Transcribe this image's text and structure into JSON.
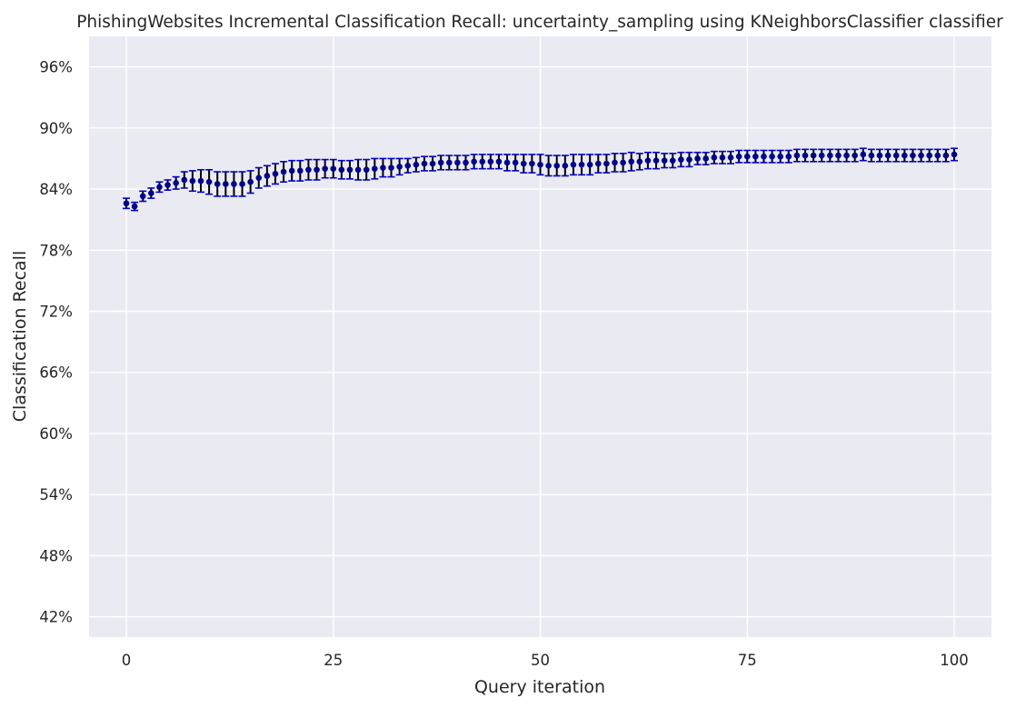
{
  "chart_data": {
    "type": "scatter",
    "title": "PhishingWebsites Incremental Classification Recall: uncertainty_sampling using KNeighborsClassifier classifier",
    "xlabel": "Query iteration",
    "ylabel": "Classification Recall",
    "xlim": [
      -4.5,
      104.5
    ],
    "ylim": [
      0.4,
      0.99
    ],
    "x_ticks": [
      0,
      25,
      50,
      75,
      100
    ],
    "x_tick_labels": [
      "0",
      "25",
      "50",
      "75",
      "100"
    ],
    "y_ticks": [
      0.42,
      0.48,
      0.54,
      0.6,
      0.66,
      0.72,
      0.78,
      0.84,
      0.9,
      0.96
    ],
    "y_tick_labels": [
      "42%",
      "48%",
      "54%",
      "60%",
      "66%",
      "72%",
      "78%",
      "84%",
      "90%",
      "96%"
    ],
    "grid": true,
    "marker_color": "#00008b",
    "errorbar_color": "#000000",
    "cap_color": "#0000cd",
    "background_color": "#eaeaf2",
    "grid_color": "#ffffff",
    "series": [
      {
        "x": [
          0,
          1,
          2,
          3,
          4,
          5,
          6,
          7,
          8,
          9,
          10,
          11,
          12,
          13,
          14,
          15,
          16,
          17,
          18,
          19,
          20,
          21,
          22,
          23,
          24,
          25,
          26,
          27,
          28,
          29,
          30,
          31,
          32,
          33,
          34,
          35,
          36,
          37,
          38,
          39,
          40,
          41,
          42,
          43,
          44,
          45,
          46,
          47,
          48,
          49,
          50,
          51,
          52,
          53,
          54,
          55,
          56,
          57,
          58,
          59,
          60,
          61,
          62,
          63,
          64,
          65,
          66,
          67,
          68,
          69,
          70,
          71,
          72,
          73,
          74,
          75,
          76,
          77,
          78,
          79,
          80,
          81,
          82,
          83,
          84,
          85,
          86,
          87,
          88,
          89,
          90,
          91,
          92,
          93,
          94,
          95,
          96,
          97,
          98,
          99,
          100
        ],
        "y": [
          0.826,
          0.823,
          0.833,
          0.836,
          0.842,
          0.844,
          0.846,
          0.849,
          0.848,
          0.848,
          0.847,
          0.845,
          0.845,
          0.845,
          0.845,
          0.847,
          0.851,
          0.853,
          0.855,
          0.857,
          0.858,
          0.858,
          0.859,
          0.859,
          0.86,
          0.86,
          0.859,
          0.859,
          0.859,
          0.859,
          0.86,
          0.861,
          0.861,
          0.862,
          0.863,
          0.864,
          0.865,
          0.865,
          0.866,
          0.866,
          0.866,
          0.866,
          0.867,
          0.867,
          0.867,
          0.867,
          0.866,
          0.866,
          0.865,
          0.865,
          0.864,
          0.863,
          0.863,
          0.863,
          0.864,
          0.864,
          0.864,
          0.865,
          0.865,
          0.866,
          0.866,
          0.867,
          0.867,
          0.868,
          0.868,
          0.868,
          0.868,
          0.869,
          0.869,
          0.87,
          0.87,
          0.871,
          0.871,
          0.871,
          0.872,
          0.872,
          0.872,
          0.872,
          0.872,
          0.872,
          0.872,
          0.873,
          0.873,
          0.873,
          0.873,
          0.873,
          0.873,
          0.873,
          0.873,
          0.874,
          0.873,
          0.873,
          0.873,
          0.873,
          0.873,
          0.873,
          0.873,
          0.873,
          0.873,
          0.873,
          0.874
        ],
        "error": [
          0.005,
          0.004,
          0.005,
          0.005,
          0.005,
          0.005,
          0.006,
          0.008,
          0.01,
          0.011,
          0.012,
          0.012,
          0.012,
          0.012,
          0.012,
          0.011,
          0.01,
          0.01,
          0.01,
          0.01,
          0.01,
          0.01,
          0.01,
          0.01,
          0.009,
          0.009,
          0.009,
          0.009,
          0.01,
          0.01,
          0.01,
          0.009,
          0.009,
          0.008,
          0.007,
          0.007,
          0.007,
          0.007,
          0.007,
          0.007,
          0.007,
          0.007,
          0.007,
          0.007,
          0.007,
          0.007,
          0.008,
          0.008,
          0.009,
          0.009,
          0.01,
          0.01,
          0.01,
          0.01,
          0.01,
          0.01,
          0.01,
          0.009,
          0.009,
          0.009,
          0.009,
          0.009,
          0.008,
          0.008,
          0.008,
          0.007,
          0.007,
          0.007,
          0.007,
          0.006,
          0.006,
          0.006,
          0.006,
          0.006,
          0.006,
          0.006,
          0.006,
          0.006,
          0.006,
          0.006,
          0.006,
          0.006,
          0.006,
          0.006,
          0.006,
          0.006,
          0.006,
          0.006,
          0.006,
          0.006,
          0.006,
          0.006,
          0.006,
          0.006,
          0.006,
          0.006,
          0.006,
          0.006,
          0.006,
          0.006,
          0.006
        ]
      }
    ]
  }
}
